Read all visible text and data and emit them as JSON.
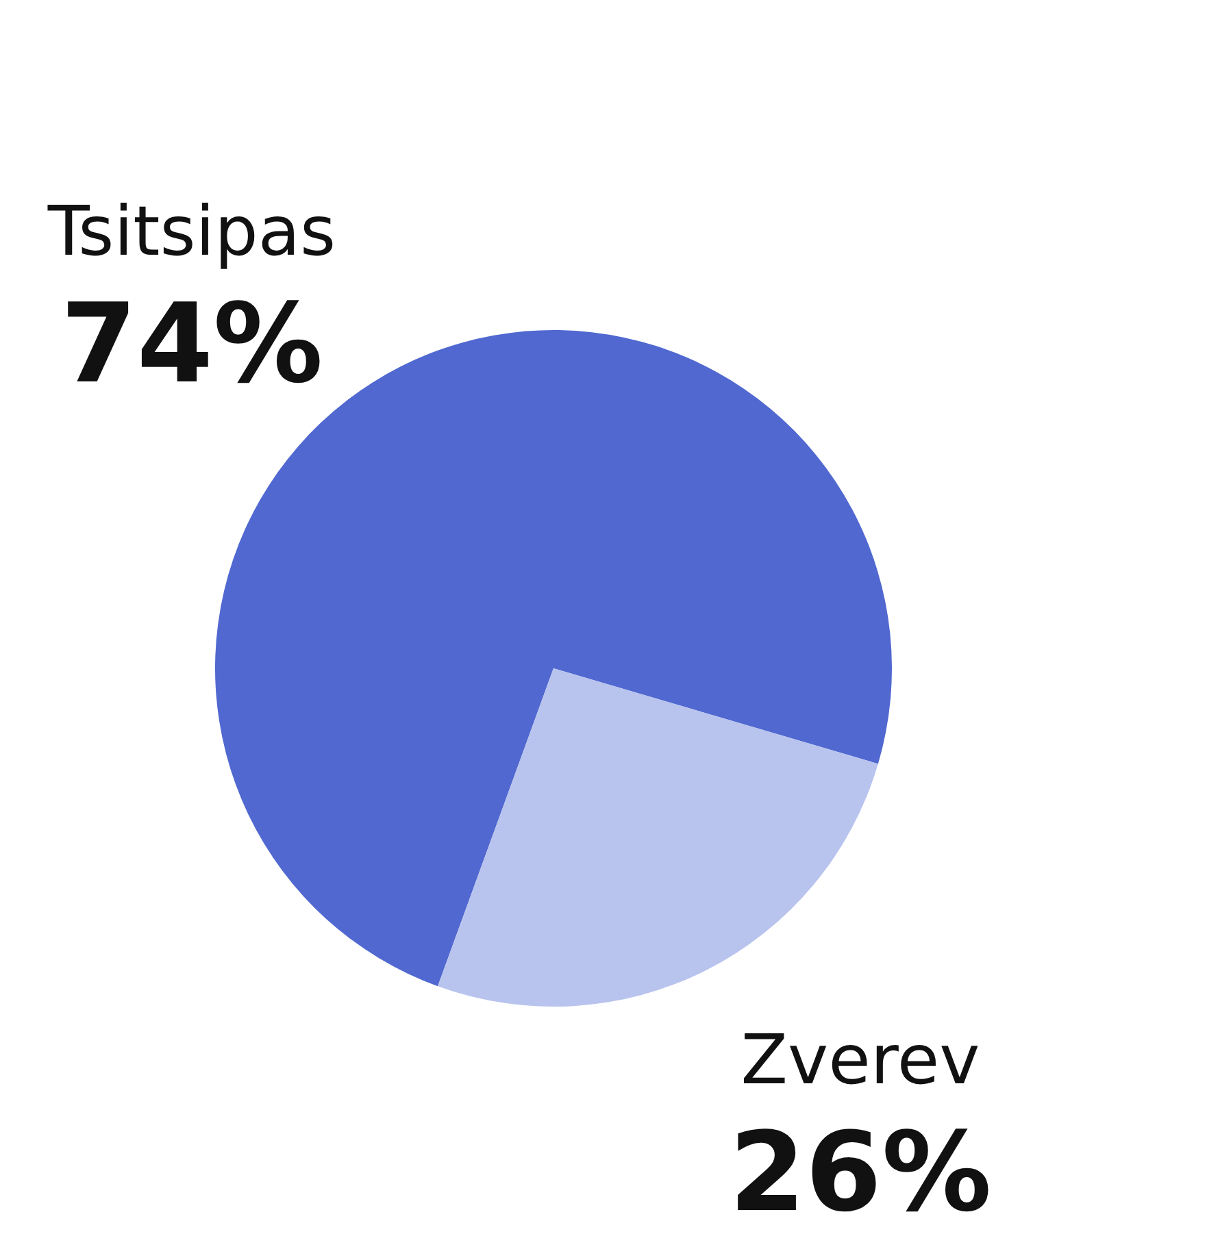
{
  "chart_data": {
    "type": "pie",
    "categories": [
      "Tsitsipas",
      "Zverev"
    ],
    "values": [
      74,
      26
    ],
    "colors": [
      "#5068d0",
      "#b8c4ee"
    ],
    "value_labels": [
      "74%",
      "26%"
    ],
    "legend": false
  }
}
